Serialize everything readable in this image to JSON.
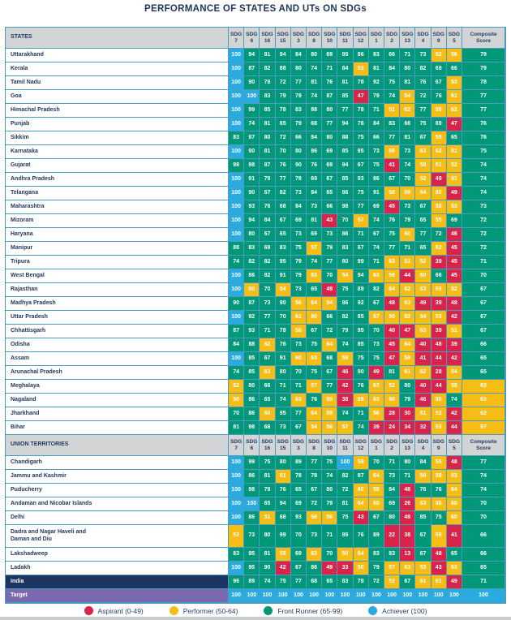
{
  "title": "PERFORMANCE OF STATES AND UTs ON SDGs",
  "colors": {
    "aspirant": "#d8234a",
    "performer": "#f7bd17",
    "front_runner": "#009878",
    "achiever": "#29abe2",
    "header_bg": "#d2d4d6",
    "header_text": "#1f3a5f",
    "india_bg": "#1e3460",
    "target_bg": "#7a69ae",
    "border": "#4c9cbe"
  },
  "legend": [
    {
      "key": "aspirant",
      "label": "Aspirant (0-49)"
    },
    {
      "key": "performer",
      "label": "Performer (50-64)"
    },
    {
      "key": "front_runner",
      "label": "Front Runner (65-99)"
    },
    {
      "key": "achiever",
      "label": "Achiever (100)"
    }
  ],
  "chart_data": {
    "type": "heatmap",
    "title": "PERFORMANCE OF STATES AND UTs ON SDGs",
    "value_bands": [
      {
        "name": "Aspirant",
        "range": [
          0,
          49
        ],
        "color_key": "aspirant"
      },
      {
        "name": "Performer",
        "range": [
          50,
          64
        ],
        "color_key": "performer"
      },
      {
        "name": "Front Runner",
        "range": [
          65,
          99
        ],
        "color_key": "front_runner"
      },
      {
        "name": "Achiever",
        "range": [
          100,
          100
        ],
        "color_key": "achiever"
      }
    ],
    "columns": [
      "SDG 7",
      "SDG 6",
      "SDG 16",
      "SDG 15",
      "SDG 3",
      "SDG 8",
      "SDG 10",
      "SDG 11",
      "SDG 12",
      "SDG 1",
      "SDG 2",
      "SDG 13",
      "SDG 4",
      "SDG 9",
      "SDG 5"
    ],
    "composite_header": "Composite Score",
    "sections": [
      {
        "header": "STATES",
        "rows": [
          {
            "name": "Uttarakhand",
            "scores": [
              100,
              94,
              81,
              94,
              84,
              80,
              69,
              89,
              86,
              83,
              66,
              71,
              73,
              62,
              56,
              79
            ]
          },
          {
            "name": "Kerala",
            "scores": [
              100,
              87,
              82,
              88,
              80,
              74,
              71,
              84,
              53,
              81,
              84,
              80,
              82,
              69,
              66,
              79
            ]
          },
          {
            "name": "Tamil Nadu",
            "scores": [
              100,
              90,
              78,
              72,
              77,
              81,
              76,
              81,
              78,
              92,
              75,
              81,
              76,
              67,
              53,
              78
            ]
          },
          {
            "name": "Goa",
            "scores": [
              100,
              100,
              83,
              79,
              79,
              74,
              87,
              85,
              47,
              79,
              74,
              54,
              72,
              76,
              61,
              77
            ]
          },
          {
            "name": "Himachal Pradesh",
            "scores": [
              100,
              99,
              85,
              78,
              83,
              88,
              80,
              77,
              78,
              71,
              51,
              62,
              77,
              59,
              62,
              77
            ]
          },
          {
            "name": "Punjab",
            "scores": [
              100,
              74,
              81,
              65,
              79,
              68,
              77,
              94,
              76,
              84,
              83,
              66,
              75,
              69,
              47,
              76
            ]
          },
          {
            "name": "Sikkim",
            "scores": [
              83,
              97,
              80,
              72,
              66,
              84,
              80,
              88,
              75,
              66,
              77,
              81,
              67,
              55,
              65,
              76
            ]
          },
          {
            "name": "Karnataka",
            "scores": [
              100,
              90,
              81,
              70,
              80,
              86,
              69,
              85,
              85,
              73,
              56,
              73,
              63,
              62,
              51,
              75
            ]
          },
          {
            "name": "Gujarat",
            "scores": [
              98,
              98,
              87,
              76,
              90,
              76,
              69,
              94,
              67,
              75,
              41,
              74,
              58,
              61,
              52,
              74
            ]
          },
          {
            "name": "Andhra Pradesh",
            "scores": [
              100,
              91,
              79,
              77,
              78,
              69,
              67,
              85,
              93,
              86,
              67,
              70,
              52,
              49,
              51,
              74
            ]
          },
          {
            "name": "Telangana",
            "scores": [
              100,
              90,
              67,
              82,
              73,
              84,
              65,
              86,
              75,
              91,
              58,
              59,
              64,
              60,
              49,
              74
            ]
          },
          {
            "name": "Maharashtra",
            "scores": [
              100,
              93,
              76,
              68,
              84,
              73,
              66,
              98,
              77,
              69,
              45,
              73,
              67,
              58,
              53,
              73
            ]
          },
          {
            "name": "Mizoram",
            "scores": [
              100,
              94,
              84,
              67,
              69,
              81,
              43,
              70,
              57,
              74,
              76,
              79,
              65,
              55,
              69,
              72
            ]
          },
          {
            "name": "Haryana",
            "scores": [
              100,
              80,
              67,
              65,
              73,
              69,
              73,
              86,
              71,
              67,
              75,
              60,
              77,
              72,
              46,
              72
            ]
          },
          {
            "name": "Manipur",
            "scores": [
              88,
              83,
              69,
              83,
              75,
              57,
              79,
              83,
              67,
              74,
              77,
              71,
              65,
              62,
              45,
              72
            ]
          },
          {
            "name": "Tripura",
            "scores": [
              74,
              82,
              82,
              95,
              79,
              74,
              77,
              80,
              99,
              71,
              63,
              51,
              52,
              39,
              45,
              71
            ]
          },
          {
            "name": "West Bengal",
            "scores": [
              100,
              86,
              82,
              91,
              79,
              63,
              70,
              54,
              94,
              63,
              56,
              44,
              60,
              66,
              45,
              70
            ]
          },
          {
            "name": "Rajasthan",
            "scores": [
              100,
              60,
              70,
              54,
              73,
              65,
              49,
              75,
              89,
              82,
              64,
              62,
              63,
              53,
              52,
              67
            ]
          },
          {
            "name": "Madhya Pradesh",
            "scores": [
              90,
              87,
              73,
              90,
              56,
              64,
              54,
              86,
              92,
              67,
              48,
              63,
              49,
              39,
              48,
              67
            ]
          },
          {
            "name": "Uttar Pradesh",
            "scores": [
              100,
              92,
              77,
              70,
              61,
              60,
              66,
              82,
              85,
              57,
              50,
              52,
              54,
              53,
              42,
              67
            ]
          },
          {
            "name": "Chhattisgarh",
            "scores": [
              87,
              93,
              71,
              78,
              56,
              67,
              72,
              79,
              95,
              70,
              40,
              47,
              63,
              39,
              51,
              67
            ]
          },
          {
            "name": "Odisha",
            "scores": [
              84,
              88,
              62,
              76,
              73,
              75,
              64,
              74,
              85,
              73,
              45,
              64,
              40,
              48,
              39,
              66
            ]
          },
          {
            "name": "Assam",
            "scores": [
              100,
              85,
              67,
              91,
              60,
              63,
              68,
              59,
              75,
              75,
              47,
              59,
              41,
              44,
              42,
              65
            ]
          },
          {
            "name": "Arunachal Pradesh",
            "scores": [
              74,
              85,
              63,
              80,
              70,
              75,
              67,
              46,
              90,
              49,
              81,
              61,
              62,
              28,
              54,
              65
            ]
          },
          {
            "name": "Meghalaya",
            "scores": [
              62,
              80,
              66,
              71,
              71,
              57,
              77,
              42,
              76,
              63,
              52,
              80,
              40,
              44,
              58,
              63
            ]
          },
          {
            "name": "Nagaland",
            "scores": [
              50,
              86,
              65,
              74,
              63,
              76,
              55,
              38,
              59,
              63,
              60,
              79,
              46,
              50,
              74,
              63
            ]
          },
          {
            "name": "Jharkhand",
            "scores": [
              70,
              86,
              60,
              95,
              77,
              64,
              59,
              74,
              71,
              56,
              28,
              30,
              61,
              53,
              42,
              62
            ]
          },
          {
            "name": "Bihar",
            "scores": [
              81,
              98,
              68,
              73,
              67,
              54,
              56,
              57,
              74,
              39,
              24,
              34,
              32,
              53,
              44,
              57
            ]
          }
        ]
      },
      {
        "header": "UNION TERRITORIES",
        "rows": [
          {
            "name": "Chandigarh",
            "scores": [
              100,
              99,
              75,
              80,
              89,
              77,
              75,
              100,
              59,
              70,
              71,
              80,
              84,
              55,
              48,
              77
            ]
          },
          {
            "name": "Jammu and Kashmir",
            "scores": [
              100,
              86,
              81,
              61,
              78,
              78,
              74,
              82,
              87,
              64,
              73,
              71,
              56,
              59,
              53,
              74
            ]
          },
          {
            "name": "Puducherry",
            "scores": [
              100,
              98,
              79,
              76,
              65,
              67,
              80,
              72,
              60,
              58,
              84,
              48,
              76,
              76,
              64,
              74
            ]
          },
          {
            "name": "Andaman and Nicobar Islands",
            "scores": [
              100,
              100,
              65,
              94,
              69,
              72,
              79,
              81,
              64,
              60,
              69,
              26,
              63,
              50,
              60,
              70
            ]
          },
          {
            "name": "Delhi",
            "scores": [
              100,
              86,
              51,
              68,
              93,
              58,
              56,
              75,
              43,
              67,
              80,
              49,
              85,
              75,
              60,
              70
            ]
          },
          {
            "name": "Dadra and Nagar Haveli and\nDaman and Diu",
            "scores": [
              52,
              73,
              80,
              99,
              70,
              73,
              71,
              89,
              76,
              89,
              22,
              38,
              67,
              55,
              41,
              66
            ]
          },
          {
            "name": "Lakshadweep",
            "scores": [
              83,
              95,
              81,
              55,
              69,
              63,
              70,
              50,
              64,
              83,
              83,
              13,
              67,
              48,
              65,
              66
            ]
          },
          {
            "name": "Ladakh",
            "scores": [
              100,
              95,
              90,
              42,
              67,
              86,
              49,
              33,
              50,
              79,
              57,
              63,
              53,
              43,
              63,
              65
            ]
          }
        ]
      }
    ],
    "summary_rows": [
      {
        "name": "India",
        "style": "india",
        "scores": [
          96,
          89,
          74,
          75,
          77,
          68,
          65,
          83,
          78,
          72,
          52,
          67,
          61,
          61,
          49,
          71
        ]
      },
      {
        "name": "Target",
        "style": "target",
        "scores": [
          100,
          100,
          100,
          100,
          100,
          100,
          100,
          100,
          100,
          100,
          100,
          100,
          100,
          100,
          100,
          100
        ]
      }
    ]
  }
}
